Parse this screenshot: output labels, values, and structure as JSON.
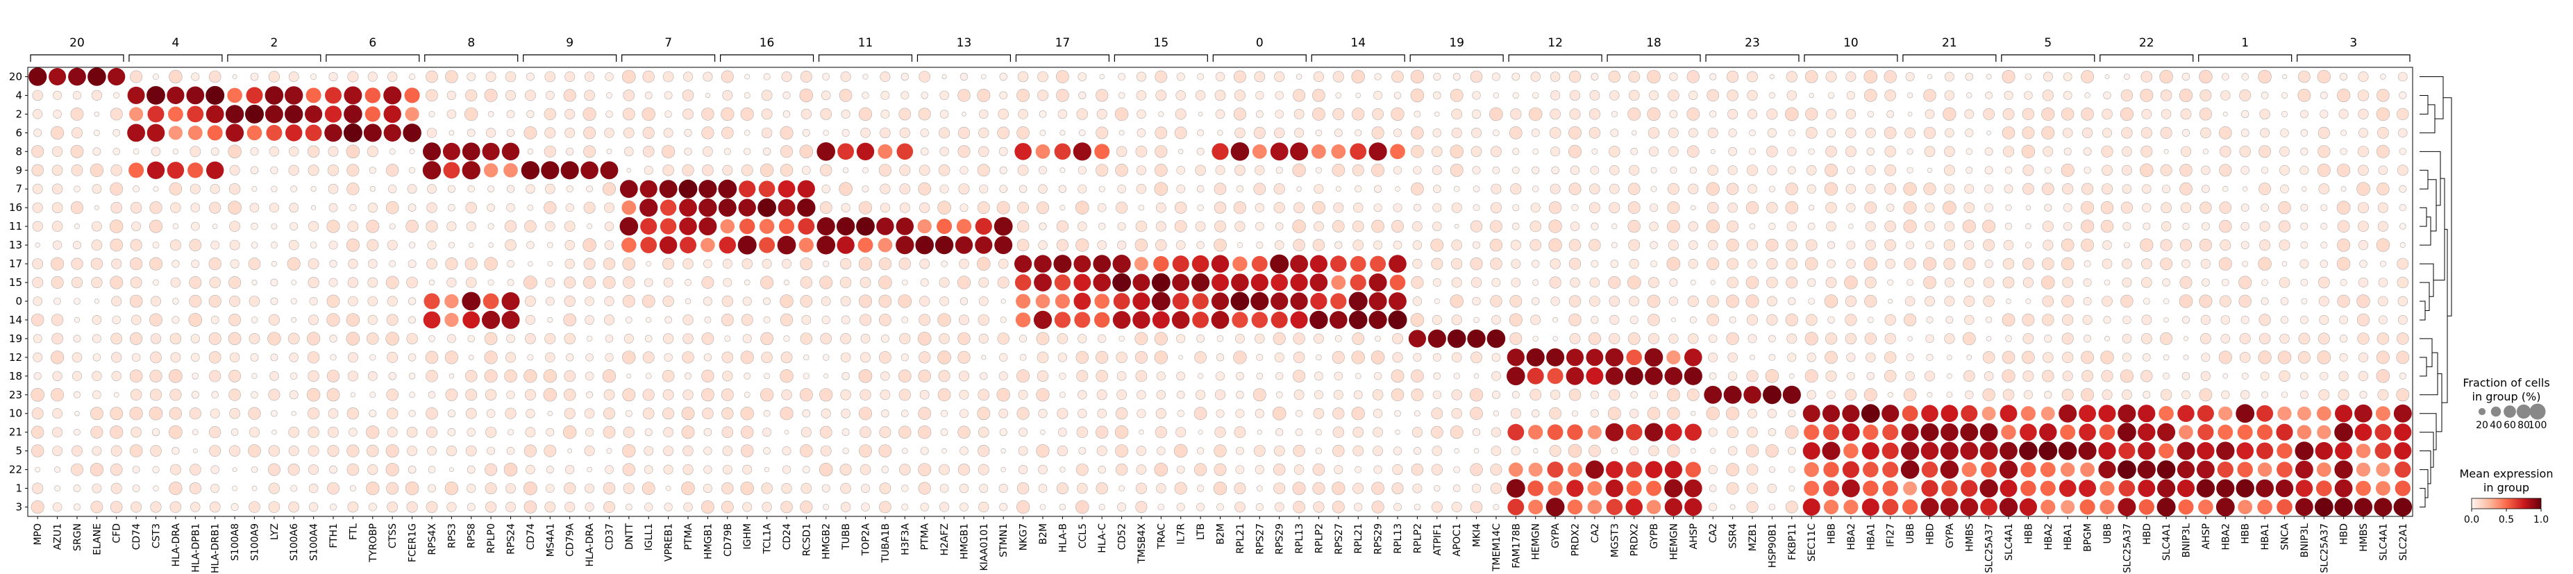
{
  "chart_data": {
    "type": "scatter",
    "subtype": "dotplot",
    "rows": [
      "20",
      "4",
      "2",
      "6",
      "8",
      "9",
      "7",
      "16",
      "11",
      "13",
      "17",
      "15",
      "0",
      "14",
      "19",
      "12",
      "18",
      "23",
      "10",
      "21",
      "5",
      "22",
      "1",
      "3"
    ],
    "groups": [
      {
        "label": "20",
        "genes": [
          "MPO",
          "AZU1",
          "SRGN",
          "ELANE",
          "CFD"
        ]
      },
      {
        "label": "4",
        "genes": [
          "CD74",
          "CST3",
          "HLA-DRA",
          "HLA-DPB1",
          "HLA-DRB1"
        ]
      },
      {
        "label": "2",
        "genes": [
          "S100A8",
          "S100A9",
          "LYZ",
          "S100A6",
          "S100A4"
        ]
      },
      {
        "label": "6",
        "genes": [
          "FTH1",
          "FTL",
          "TYROBP",
          "CTSS",
          "FCER1G"
        ]
      },
      {
        "label": "8",
        "genes": [
          "RPS4X",
          "RPS3",
          "RPS8",
          "RPLP0",
          "RPS24"
        ]
      },
      {
        "label": "9",
        "genes": [
          "CD74",
          "MS4A1",
          "CD79A",
          "HLA-DRA",
          "CD37"
        ]
      },
      {
        "label": "7",
        "genes": [
          "DNTT",
          "IGLL1",
          "VPREB1",
          "PTMA",
          "HMGB1"
        ]
      },
      {
        "label": "16",
        "genes": [
          "CD79B",
          "IGHM",
          "TCL1A",
          "CD24",
          "RCSD1"
        ]
      },
      {
        "label": "11",
        "genes": [
          "HMGB2",
          "TUBB",
          "TOP2A",
          "TUBA1B",
          "H3F3A"
        ]
      },
      {
        "label": "13",
        "genes": [
          "PTMA",
          "H2AFZ",
          "HMGB1",
          "KIAA0101",
          "STMN1"
        ]
      },
      {
        "label": "17",
        "genes": [
          "NKG7",
          "B2M",
          "HLA-B",
          "CCL5",
          "HLA-C"
        ]
      },
      {
        "label": "15",
        "genes": [
          "CD52",
          "TMSB4X",
          "TRAC",
          "IL7R",
          "LTB"
        ]
      },
      {
        "label": "0",
        "genes": [
          "B2M",
          "RPL21",
          "RPS27",
          "RPS29",
          "RPL13"
        ]
      },
      {
        "label": "14",
        "genes": [
          "RPLP2",
          "RPS27",
          "RPL21",
          "RPS29",
          "RPL13"
        ]
      },
      {
        "label": "19",
        "genes": [
          "RPLP2",
          "ATPIF1",
          "APOC1",
          "MKI4",
          "TMEM14C"
        ]
      },
      {
        "label": "12",
        "genes": [
          "FAM178B",
          "HEMGN",
          "GYPA",
          "PRDX2",
          "CA2"
        ]
      },
      {
        "label": "18",
        "genes": [
          "MGST3",
          "PRDX2",
          "GYPB",
          "HEMGN",
          "AHSP"
        ]
      },
      {
        "label": "23",
        "genes": [
          "CA2",
          "SSR4",
          "MZB1",
          "HSP90B1",
          "FKBP11"
        ]
      },
      {
        "label": "10",
        "genes": [
          "SEC11C",
          "HBB",
          "HBA2",
          "HBA1",
          "IFI27"
        ]
      },
      {
        "label": "21",
        "genes": [
          "UBB",
          "HBD",
          "GYPA",
          "HMBS",
          "SLC25A37"
        ]
      },
      {
        "label": "5",
        "genes": [
          "SLC4A1",
          "HBB",
          "HBA2",
          "HBA1",
          "BPGM"
        ]
      },
      {
        "label": "22",
        "genes": [
          "UBB",
          "SLC25A37",
          "HBD",
          "SLC4A1",
          "BNIP3L"
        ]
      },
      {
        "label": "1",
        "genes": [
          "AHSP",
          "HBA2",
          "HBB",
          "HBA1",
          "SNCA"
        ]
      },
      {
        "label": "3",
        "genes": [
          "BNIP3L",
          "SLC25A37",
          "HBD",
          "HMBS",
          "SLC4A1"
        ]
      }
    ],
    "extra_gene": "SLC2A1",
    "legend_size": {
      "title_line1": "Fraction of cells",
      "title_line2": "in group (%)",
      "ticks": [
        "20",
        "40",
        "60",
        "80",
        "100"
      ],
      "values": [
        20,
        40,
        60,
        80,
        100
      ]
    },
    "legend_color": {
      "title_line1": "Mean expression",
      "title_line2": "in group",
      "ticks": [
        "0.0",
        "0.5",
        "1.0"
      ],
      "range": [
        0,
        1
      ],
      "colormap": "Reds",
      "colors": [
        "#fff5f0",
        "#fcbba1",
        "#fb6a4a",
        "#cb181d",
        "#67000d"
      ]
    },
    "dendrogram": "right",
    "grid": false
  }
}
